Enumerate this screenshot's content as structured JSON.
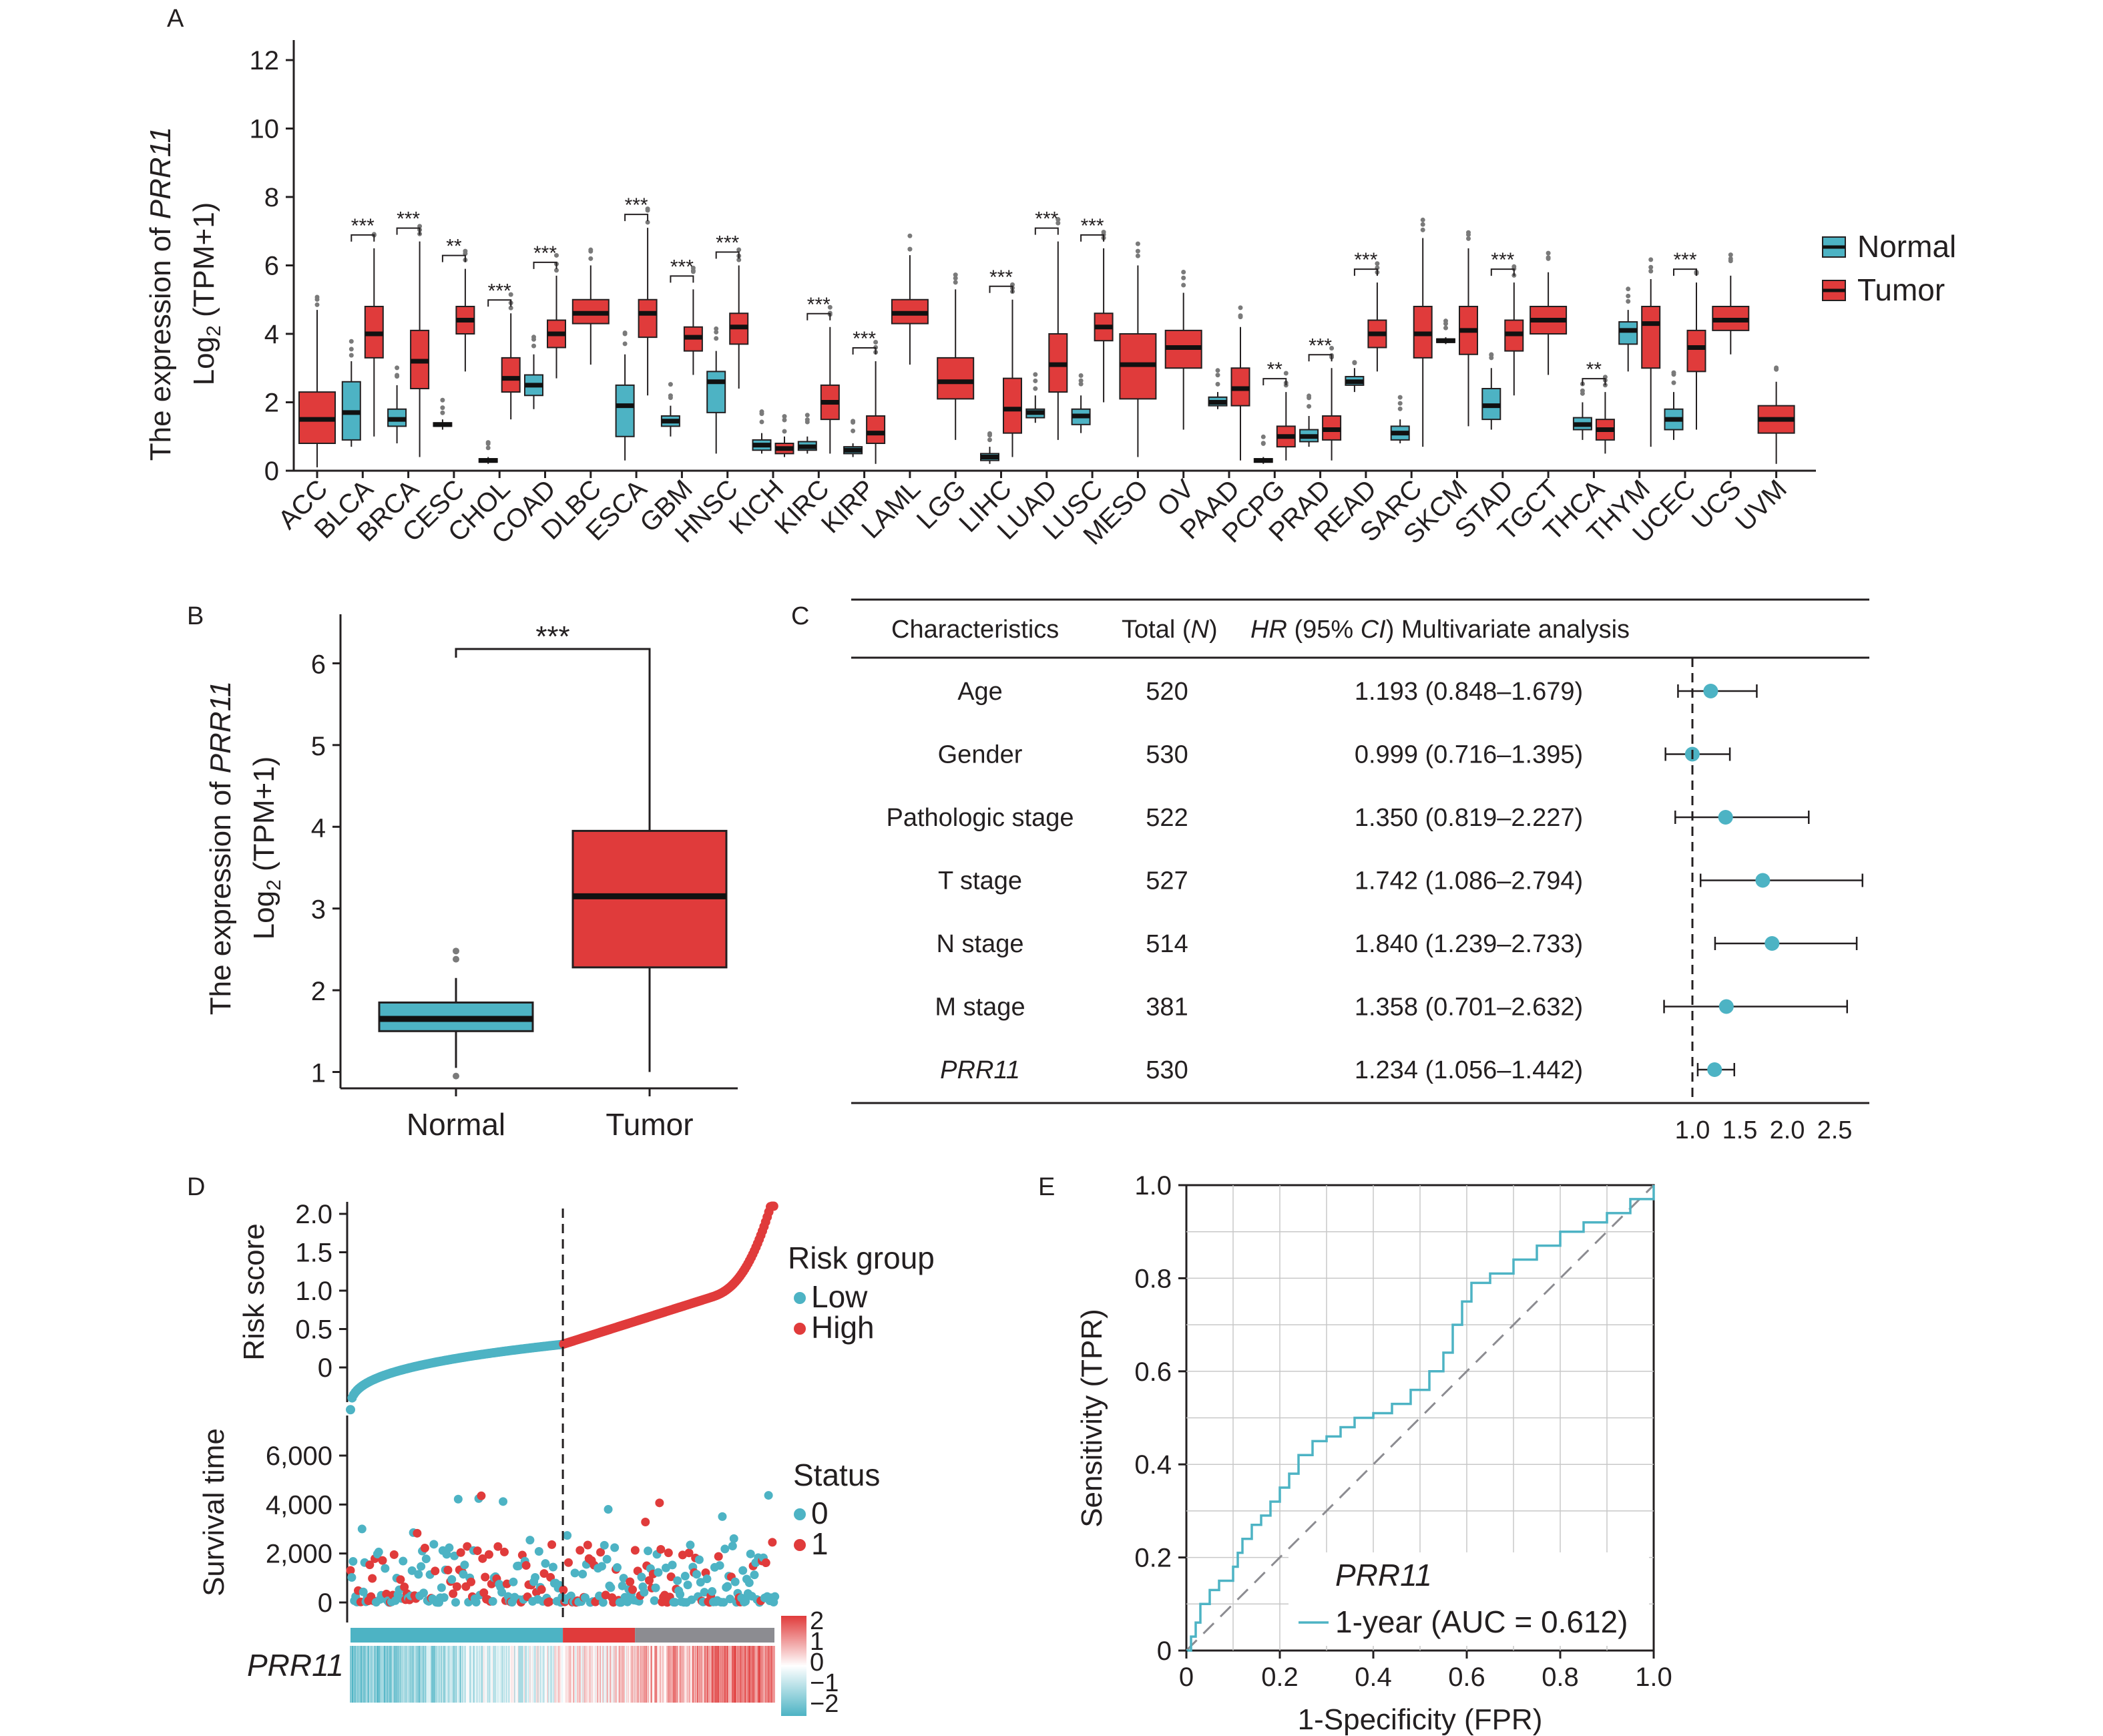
{
  "colors": {
    "normal": "#4db3c4",
    "tumor": "#e03b3b",
    "grey": "#8c8c91",
    "median": "#111111"
  },
  "panel_labels": [
    "A",
    "B",
    "C",
    "D",
    "E"
  ],
  "chart_data": [
    {
      "panel": "A",
      "type": "box",
      "ylabel_line1_prefix": "The expression of ",
      "ylabel_line1_gene": "PRR11",
      "ylabel_line2": "Log",
      "ylabel_line2_sub": "2",
      "ylabel_line2_suffix": " (TPM+1)",
      "ylim": [
        0,
        12
      ],
      "yticks": [
        "0",
        "2",
        "4",
        "6",
        "8",
        "10",
        "12"
      ],
      "legend": [
        "Normal",
        "Tumor"
      ],
      "categories": [
        "ACC",
        "BLCA",
        "BRCA",
        "CESC",
        "CHOL",
        "COAD",
        "DLBC",
        "ESCA",
        "GBM",
        "HNSC",
        "KICH",
        "KIRC",
        "KIRP",
        "LAML",
        "LGG",
        "LIHC",
        "LUAD",
        "LUSC",
        "MESO",
        "OV",
        "PAAD",
        "PCPG",
        "PRAD",
        "READ",
        "SARC",
        "SKCM",
        "STAD",
        "TGCT",
        "THCA",
        "THYM",
        "UCEC",
        "UCS",
        "UVM"
      ],
      "normal": [
        null,
        [
          0.7,
          0.9,
          1.7,
          2.6,
          3.2
        ],
        [
          0.8,
          1.3,
          1.5,
          1.8,
          2.5
        ],
        [
          1.2,
          1.3,
          1.35,
          1.4,
          1.5
        ],
        [
          0.2,
          0.25,
          0.3,
          0.35,
          0.4
        ],
        [
          1.8,
          2.2,
          2.5,
          2.8,
          3.4
        ],
        null,
        [
          0.3,
          1.0,
          1.9,
          2.5,
          3.4
        ],
        [
          1.0,
          1.3,
          1.45,
          1.6,
          1.9
        ],
        [
          0.5,
          1.7,
          2.6,
          2.9,
          3.5
        ],
        [
          0.5,
          0.6,
          0.75,
          0.9,
          1.1
        ],
        [
          0.5,
          0.6,
          0.7,
          0.85,
          1.0
        ],
        [
          0.4,
          0.5,
          0.6,
          0.7,
          0.8
        ],
        null,
        null,
        [
          0.2,
          0.3,
          0.4,
          0.5,
          0.7
        ],
        [
          1.4,
          1.55,
          1.7,
          1.8,
          2.2
        ],
        [
          1.1,
          1.35,
          1.6,
          1.8,
          2.2
        ],
        null,
        null,
        [
          1.8,
          1.9,
          2.0,
          2.15,
          2.3
        ],
        [
          0.2,
          0.25,
          0.3,
          0.35,
          0.4
        ],
        [
          0.7,
          0.85,
          1.0,
          1.2,
          1.6
        ],
        [
          2.3,
          2.5,
          2.6,
          2.75,
          3.0
        ],
        [
          0.8,
          0.9,
          1.1,
          1.3,
          1.5
        ],
        [
          3.7,
          3.75,
          3.8,
          3.85,
          3.9
        ],
        [
          1.2,
          1.5,
          1.9,
          2.4,
          3.0
        ],
        null,
        [
          0.9,
          1.2,
          1.35,
          1.55,
          2.0
        ],
        [
          2.9,
          3.7,
          4.1,
          4.35,
          4.7
        ],
        [
          0.9,
          1.2,
          1.5,
          1.8,
          2.3
        ],
        null,
        null
      ],
      "tumor": [
        [
          0.1,
          0.8,
          1.5,
          2.3,
          4.7
        ],
        [
          1.0,
          3.3,
          4.0,
          4.8,
          6.5
        ],
        [
          0.4,
          2.4,
          3.2,
          4.1,
          6.7
        ],
        [
          2.9,
          4.0,
          4.4,
          4.8,
          5.9
        ],
        [
          1.5,
          2.3,
          2.7,
          3.3,
          4.6
        ],
        [
          2.7,
          3.6,
          4.0,
          4.4,
          5.7
        ],
        [
          3.1,
          4.3,
          4.6,
          5.0,
          6.0
        ],
        [
          2.2,
          3.9,
          4.6,
          5.0,
          7.1
        ],
        [
          2.8,
          3.5,
          3.9,
          4.2,
          5.3
        ],
        [
          2.4,
          3.7,
          4.2,
          4.6,
          6.0
        ],
        [
          0.4,
          0.5,
          0.65,
          0.8,
          1.0
        ],
        [
          0.5,
          1.5,
          2.0,
          2.5,
          4.2
        ],
        [
          0.2,
          0.8,
          1.1,
          1.6,
          3.2
        ],
        [
          3.1,
          4.3,
          4.6,
          5.0,
          6.3
        ],
        [
          0.9,
          2.1,
          2.6,
          3.3,
          5.3
        ],
        [
          0.4,
          1.1,
          1.8,
          2.7,
          5.0
        ],
        [
          0.9,
          2.3,
          3.1,
          4.0,
          6.7
        ],
        [
          2.0,
          3.8,
          4.2,
          4.6,
          6.5
        ],
        [
          0.4,
          2.1,
          3.1,
          4.0,
          6.0
        ],
        [
          1.2,
          3.0,
          3.6,
          4.1,
          5.2
        ],
        [
          0.3,
          1.9,
          2.4,
          3.0,
          4.2
        ],
        [
          0.3,
          0.7,
          1.0,
          1.3,
          2.3
        ],
        [
          0.3,
          0.9,
          1.2,
          1.6,
          3.0
        ],
        [
          2.9,
          3.6,
          4.0,
          4.4,
          5.5
        ],
        [
          0.7,
          3.3,
          4.0,
          4.8,
          6.8
        ],
        [
          1.3,
          3.4,
          4.1,
          4.8,
          6.5
        ],
        [
          2.2,
          3.5,
          4.0,
          4.4,
          5.5
        ],
        [
          2.8,
          4.0,
          4.4,
          4.8,
          5.8
        ],
        [
          0.5,
          0.9,
          1.2,
          1.5,
          2.3
        ],
        [
          0.7,
          3.0,
          4.3,
          4.8,
          5.6
        ],
        [
          1.2,
          2.9,
          3.6,
          4.1,
          5.5
        ],
        [
          3.4,
          4.1,
          4.4,
          4.8,
          5.7
        ],
        [
          0.2,
          1.1,
          1.5,
          1.9,
          2.6
        ]
      ],
      "significance": [
        "",
        "***",
        "***",
        "**",
        "***",
        "***",
        "",
        "***",
        "***",
        "***",
        "",
        "***",
        "***",
        "",
        "",
        "***",
        "***",
        "***",
        "",
        "",
        "",
        "**",
        "***",
        "***",
        "",
        "",
        "***",
        "",
        "**",
        "",
        "***",
        "",
        ""
      ]
    },
    {
      "panel": "B",
      "type": "box",
      "ylabel_line1_prefix": "The expression of ",
      "ylabel_line1_gene": "PRR11",
      "ylabel_line2": "Log",
      "ylabel_line2_sub": "2",
      "ylabel_line2_suffix": " (TPM+1)",
      "categories": [
        "Normal",
        "Tumor"
      ],
      "ylim": [
        0.8,
        6.6
      ],
      "yticks": [
        "1",
        "2",
        "3",
        "4",
        "5",
        "6"
      ],
      "boxes": [
        [
          1.05,
          1.5,
          1.65,
          1.85,
          2.15
        ],
        [
          1.0,
          2.28,
          3.15,
          3.95,
          6.1
        ]
      ],
      "outliers": [
        [
          0.95,
          2.38,
          2.48
        ],
        []
      ],
      "significance": "***"
    },
    {
      "panel": "C",
      "type": "table",
      "headers": [
        "Characteristics",
        "Total (",
        "N",
        ")",
        "HR",
        " (95% ",
        "CI",
        ") Multivariate analysis"
      ],
      "rows": [
        {
          "name": "Age",
          "total": "520",
          "hr_text": "1.193 (0.848–1.679)",
          "hr": 1.193,
          "low": 0.848,
          "high": 1.679,
          "italic": false
        },
        {
          "name": "Gender",
          "total": "530",
          "hr_text": "0.999 (0.716–1.395)",
          "hr": 0.999,
          "low": 0.716,
          "high": 1.395,
          "italic": false
        },
        {
          "name": "Pathologic stage",
          "total": "522",
          "hr_text": "1.350 (0.819–2.227)",
          "hr": 1.35,
          "low": 0.819,
          "high": 2.227,
          "italic": false
        },
        {
          "name": "T stage",
          "total": "527",
          "hr_text": "1.742 (1.086–2.794)",
          "hr": 1.742,
          "low": 1.086,
          "high": 2.794,
          "italic": false
        },
        {
          "name": "N stage",
          "total": "514",
          "hr_text": "1.840 (1.239–2.733)",
          "hr": 1.84,
          "low": 1.239,
          "high": 2.733,
          "italic": false
        },
        {
          "name": "M stage",
          "total": "381",
          "hr_text": "1.358 (0.701–2.632)",
          "hr": 1.358,
          "low": 0.701,
          "high": 2.632,
          "italic": false
        },
        {
          "name": "PRR11",
          "total": "530",
          "hr_text": "1.234 (1.056–1.442)",
          "hr": 1.234,
          "low": 1.056,
          "high": 1.442,
          "italic": true
        }
      ],
      "xticks": [
        "1.0",
        "1.5",
        "2.0",
        "2.5"
      ],
      "reference_line": 1.0
    },
    {
      "panel": "D",
      "type": "scatter",
      "risk_ylabel": "Risk score",
      "risk_yticks": [
        "0",
        "0.5",
        "1.0",
        "1.5",
        "2.0"
      ],
      "surv_ylabel": "Survival time",
      "surv_yticks": [
        "0",
        "2,000",
        "4,000",
        "6,000"
      ],
      "legend_risk_title": "Risk group",
      "legend_risk": [
        "Low",
        "High"
      ],
      "legend_status_title": "Status",
      "legend_status": [
        "0",
        "1"
      ],
      "heatmap_label": "PRR11",
      "colorbar_ticks": [
        "2",
        "1",
        "0",
        "−1",
        "−2"
      ],
      "n_samples": 530,
      "cutoff_index": 265
    },
    {
      "panel": "E",
      "type": "line",
      "xlabel": "1-Specificity (FPR)",
      "ylabel": "Sensitivity (TPR)",
      "xticks": [
        "0",
        "0.2",
        "0.4",
        "0.6",
        "0.8",
        "1.0"
      ],
      "yticks": [
        "0",
        "0.2",
        "0.4",
        "0.6",
        "0.8",
        "1.0"
      ],
      "legend_title": "PRR11",
      "legend_label": "1-year (AUC = 0.612)",
      "roc": [
        [
          0,
          0
        ],
        [
          0.01,
          0.03
        ],
        [
          0.02,
          0.06
        ],
        [
          0.03,
          0.1
        ],
        [
          0.05,
          0.13
        ],
        [
          0.07,
          0.15
        ],
        [
          0.1,
          0.18
        ],
        [
          0.11,
          0.21
        ],
        [
          0.12,
          0.24
        ],
        [
          0.14,
          0.27
        ],
        [
          0.16,
          0.29
        ],
        [
          0.18,
          0.32
        ],
        [
          0.2,
          0.35
        ],
        [
          0.22,
          0.38
        ],
        [
          0.24,
          0.42
        ],
        [
          0.27,
          0.45
        ],
        [
          0.3,
          0.46
        ],
        [
          0.33,
          0.48
        ],
        [
          0.36,
          0.5
        ],
        [
          0.4,
          0.51
        ],
        [
          0.44,
          0.53
        ],
        [
          0.48,
          0.56
        ],
        [
          0.52,
          0.6
        ],
        [
          0.55,
          0.64
        ],
        [
          0.57,
          0.7
        ],
        [
          0.59,
          0.75
        ],
        [
          0.61,
          0.79
        ],
        [
          0.65,
          0.81
        ],
        [
          0.7,
          0.84
        ],
        [
          0.75,
          0.87
        ],
        [
          0.8,
          0.9
        ],
        [
          0.85,
          0.92
        ],
        [
          0.9,
          0.94
        ],
        [
          0.95,
          0.97
        ],
        [
          1,
          1
        ]
      ]
    }
  ]
}
